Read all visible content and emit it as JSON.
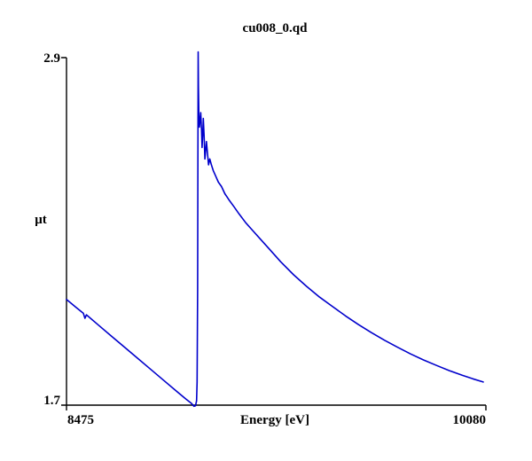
{
  "page": {
    "background": "#ffffff"
  },
  "chart_data": {
    "type": "line",
    "title": "cu008_0.qd",
    "xlabel": "Energy [eV]",
    "ylabel": "μt",
    "xlim": [
      8475,
      10080
    ],
    "ylim": [
      1.7,
      2.9
    ],
    "x_ticks": [
      "8475",
      "10080"
    ],
    "y_ticks": [
      "1.7",
      "2.9"
    ],
    "legend": "none",
    "grid": "off",
    "line_color": "#0000cc",
    "axis_color": "#000000",
    "series": [
      {
        "name": "cu008_0.qd",
        "points": [
          [
            8475,
            2.065
          ],
          [
            8510,
            2.039
          ],
          [
            8540,
            2.017
          ],
          [
            8546,
            2.0
          ],
          [
            8552,
            2.012
          ],
          [
            8600,
            1.975
          ],
          [
            8650,
            1.937
          ],
          [
            8700,
            1.899
          ],
          [
            8750,
            1.861
          ],
          [
            8800,
            1.823
          ],
          [
            8850,
            1.785
          ],
          [
            8900,
            1.747
          ],
          [
            8935,
            1.721
          ],
          [
            8955,
            1.707
          ],
          [
            8966,
            1.696
          ],
          [
            8972,
            1.698
          ],
          [
            8976,
            1.715
          ],
          [
            8978,
            1.78
          ],
          [
            8980,
            2.1
          ],
          [
            8981,
            2.55
          ],
          [
            8982,
            2.92
          ],
          [
            8983,
            2.8
          ],
          [
            8985,
            2.7
          ],
          [
            8987,
            2.66
          ],
          [
            8990,
            2.69
          ],
          [
            8992,
            2.71
          ],
          [
            8995,
            2.65
          ],
          [
            8997,
            2.59
          ],
          [
            9000,
            2.64
          ],
          [
            9002,
            2.69
          ],
          [
            9005,
            2.63
          ],
          [
            9008,
            2.55
          ],
          [
            9011,
            2.58
          ],
          [
            9014,
            2.61
          ],
          [
            9018,
            2.57
          ],
          [
            9022,
            2.53
          ],
          [
            9027,
            2.55
          ],
          [
            9033,
            2.53
          ],
          [
            9040,
            2.51
          ],
          [
            9050,
            2.49
          ],
          [
            9060,
            2.47
          ],
          [
            9072,
            2.455
          ],
          [
            9085,
            2.43
          ],
          [
            9100,
            2.41
          ],
          [
            9120,
            2.385
          ],
          [
            9140,
            2.36
          ],
          [
            9165,
            2.33
          ],
          [
            9190,
            2.305
          ],
          [
            9220,
            2.275
          ],
          [
            9260,
            2.235
          ],
          [
            9300,
            2.195
          ],
          [
            9350,
            2.15
          ],
          [
            9400,
            2.11
          ],
          [
            9450,
            2.073
          ],
          [
            9500,
            2.04
          ],
          [
            9550,
            2.008
          ],
          [
            9600,
            1.978
          ],
          [
            9650,
            1.95
          ],
          [
            9700,
            1.924
          ],
          [
            9750,
            1.9
          ],
          [
            9800,
            1.877
          ],
          [
            9850,
            1.856
          ],
          [
            9900,
            1.837
          ],
          [
            9950,
            1.819
          ],
          [
            10000,
            1.803
          ],
          [
            10040,
            1.791
          ],
          [
            10080,
            1.78
          ]
        ]
      }
    ]
  }
}
